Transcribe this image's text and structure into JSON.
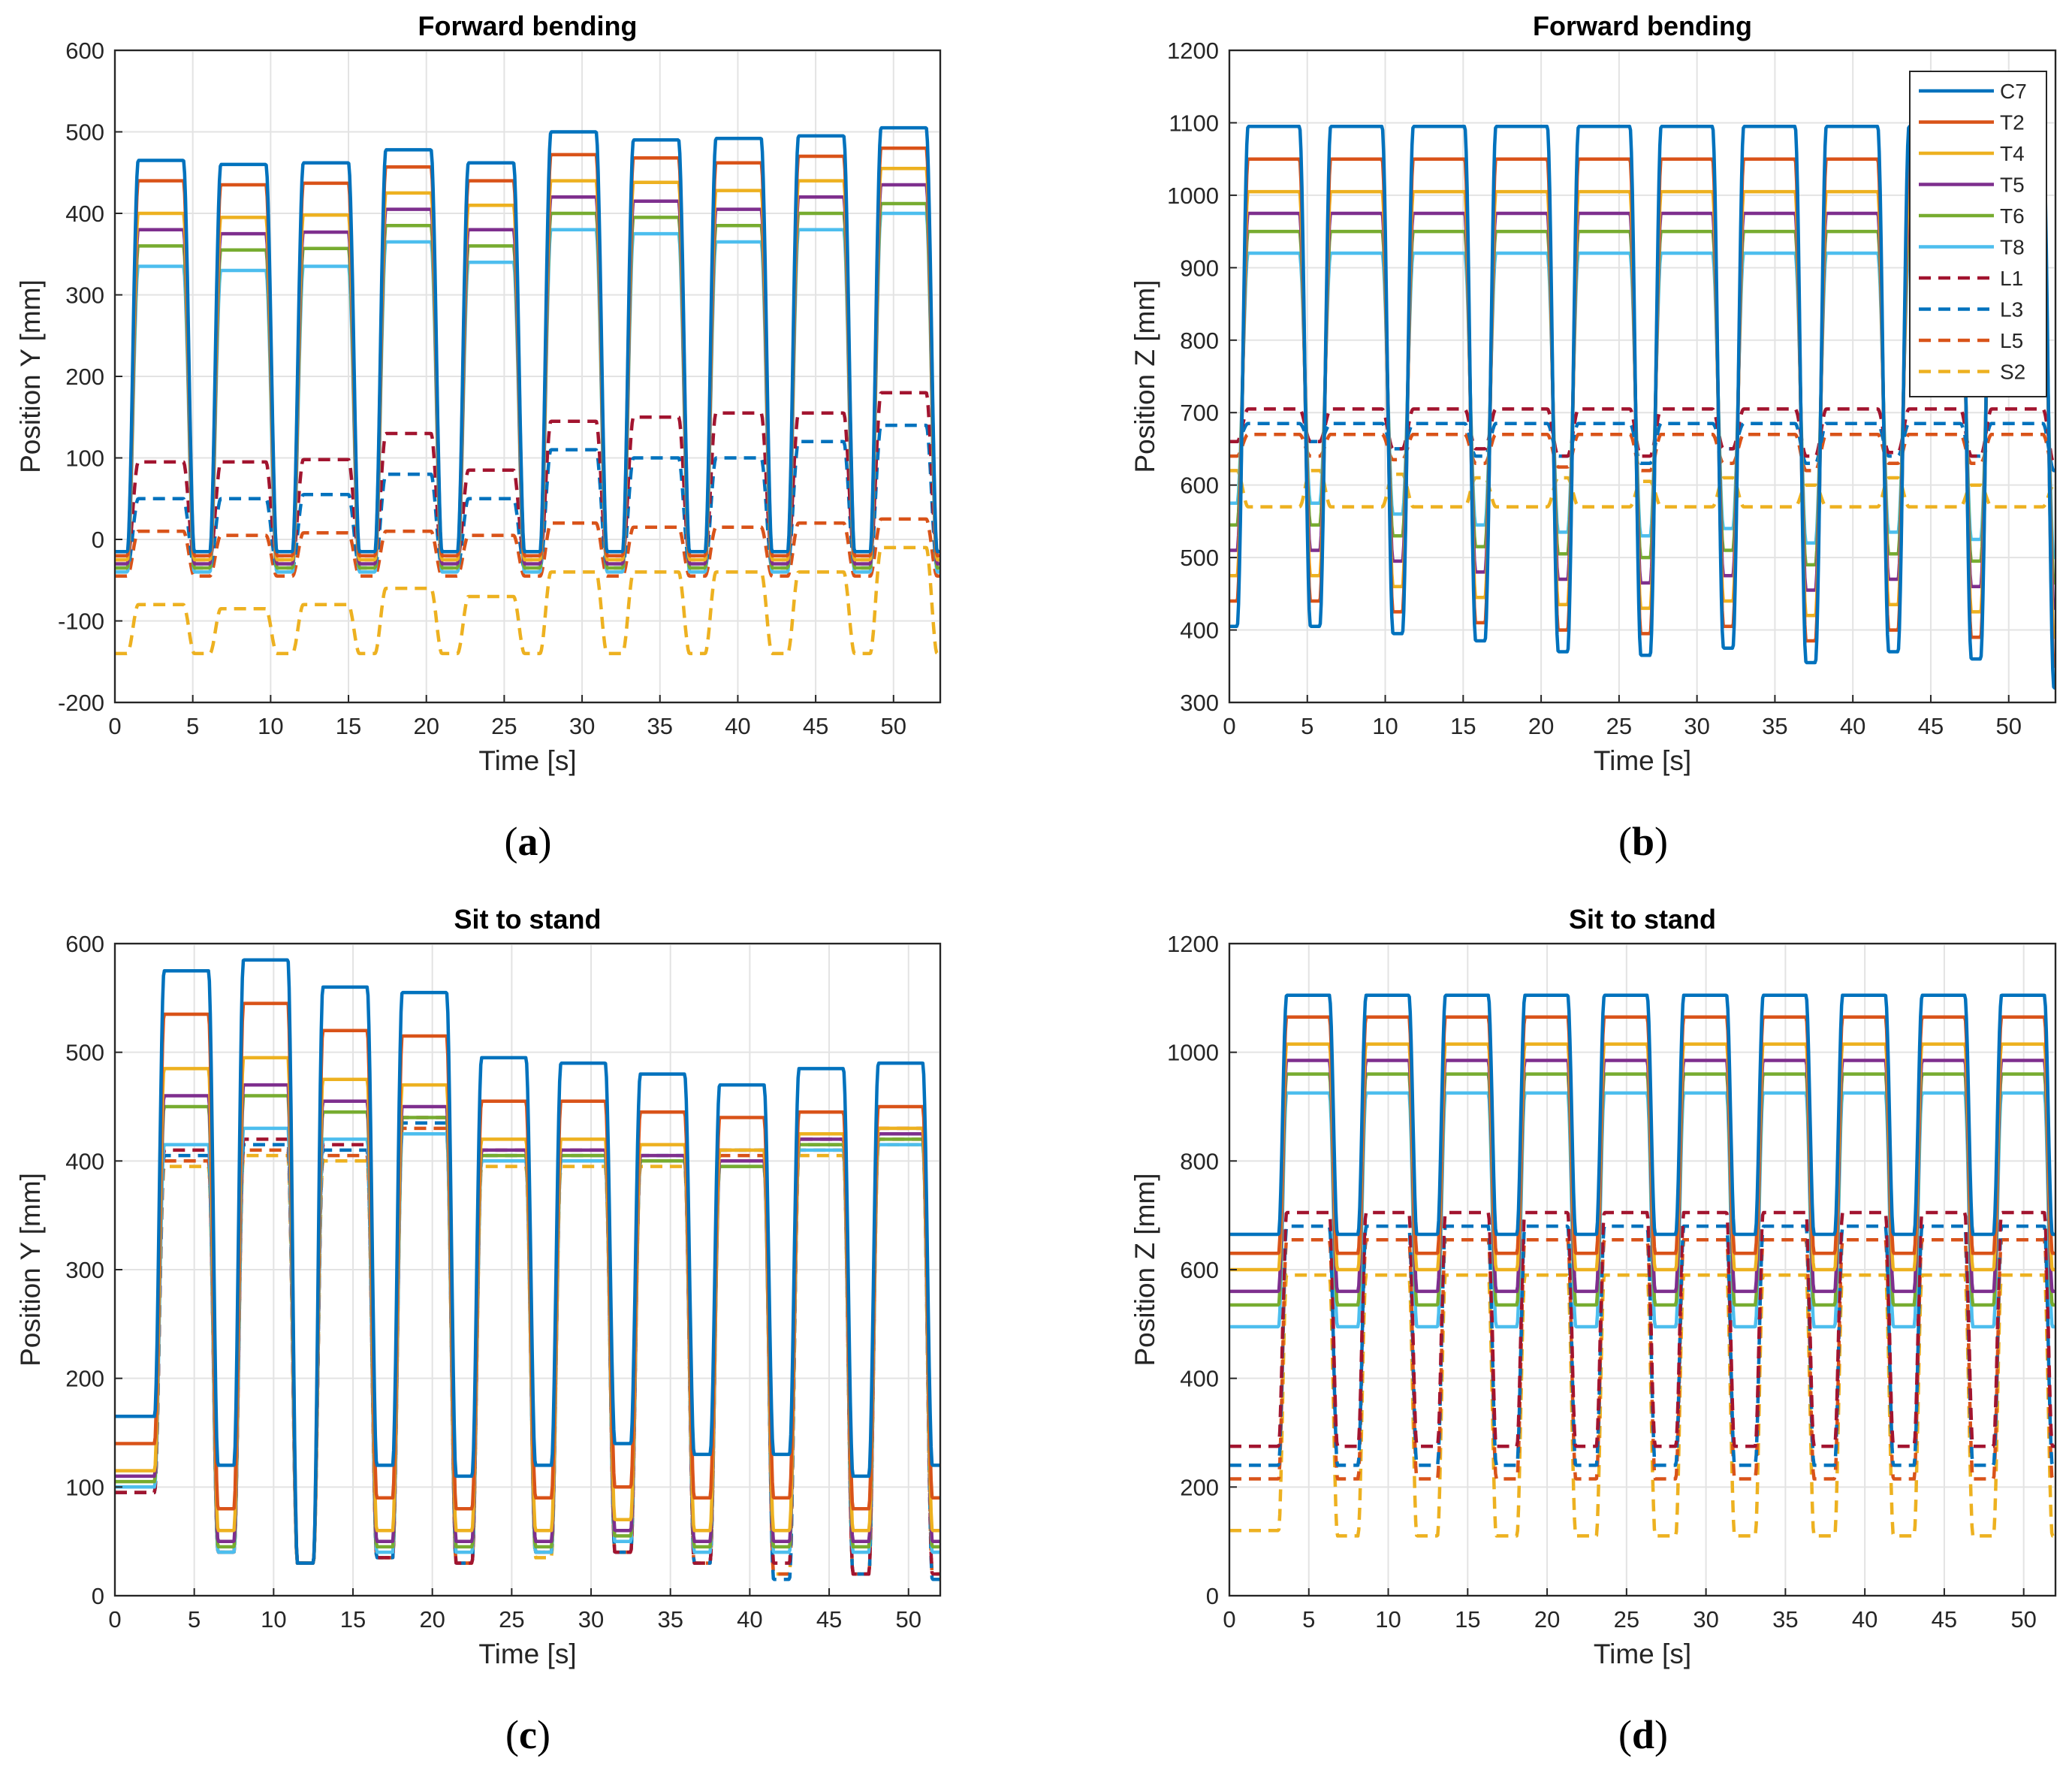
{
  "figure": {
    "captions": [
      "a",
      "b",
      "c",
      "d"
    ]
  },
  "legend": {
    "entries": [
      {
        "name": "C7",
        "color": "#0072BD",
        "style": "solid"
      },
      {
        "name": "T2",
        "color": "#D95319",
        "style": "solid"
      },
      {
        "name": "T4",
        "color": "#EDB120",
        "style": "solid"
      },
      {
        "name": "T5",
        "color": "#7E2F8E",
        "style": "solid"
      },
      {
        "name": "T6",
        "color": "#77AC30",
        "style": "solid"
      },
      {
        "name": "T8",
        "color": "#4DBEEE",
        "style": "solid"
      },
      {
        "name": "L1",
        "color": "#A2142F",
        "style": "dashed"
      },
      {
        "name": "L3",
        "color": "#0072BD",
        "style": "dashed"
      },
      {
        "name": "L5",
        "color": "#D95319",
        "style": "dashed"
      },
      {
        "name": "S2",
        "color": "#EDB120",
        "style": "dashed"
      }
    ]
  },
  "chart_data": [
    {
      "id": "a",
      "type": "line",
      "title": "Forward bending",
      "xlabel": "Time [s]",
      "ylabel": "Position Y [mm]",
      "xlim": [
        0,
        53
      ],
      "ylim": [
        -200,
        600
      ],
      "xticks": [
        0,
        5,
        10,
        15,
        20,
        25,
        30,
        35,
        40,
        45,
        50
      ],
      "yticks": [
        -200,
        -100,
        0,
        100,
        200,
        300,
        400,
        500,
        600
      ],
      "grid": true,
      "legend": "none",
      "cycles": {
        "t0": 0.8,
        "period": 5.3,
        "high_width": 2.9,
        "rise": 0.7
      },
      "series": [
        {
          "name": "C7",
          "low": -15,
          "high": [
            465,
            460,
            462,
            478,
            462,
            500,
            490,
            492,
            495,
            505
          ]
        },
        {
          "name": "T2",
          "low": -20,
          "high": [
            440,
            435,
            437,
            457,
            440,
            472,
            468,
            462,
            470,
            480
          ]
        },
        {
          "name": "T4",
          "low": -25,
          "high": [
            400,
            395,
            398,
            425,
            410,
            440,
            438,
            428,
            440,
            455
          ]
        },
        {
          "name": "T5",
          "low": -30,
          "high": [
            380,
            375,
            377,
            405,
            380,
            420,
            415,
            405,
            420,
            435
          ]
        },
        {
          "name": "T6",
          "low": -35,
          "high": [
            360,
            355,
            357,
            385,
            360,
            400,
            395,
            385,
            400,
            412
          ]
        },
        {
          "name": "T8",
          "low": -40,
          "high": [
            335,
            330,
            335,
            365,
            340,
            380,
            375,
            365,
            380,
            400
          ]
        },
        {
          "name": "L1",
          "low": -25,
          "high": [
            95,
            95,
            98,
            130,
            85,
            145,
            150,
            155,
            155,
            180
          ]
        },
        {
          "name": "L3",
          "low": -35,
          "high": [
            50,
            50,
            55,
            80,
            50,
            110,
            100,
            100,
            120,
            140
          ]
        },
        {
          "name": "L5",
          "low": -45,
          "high": [
            10,
            5,
            8,
            10,
            5,
            20,
            15,
            15,
            20,
            25
          ]
        },
        {
          "name": "S2",
          "low": -140,
          "high": [
            -80,
            -85,
            -80,
            -60,
            -70,
            -40,
            -40,
            -40,
            -40,
            -10
          ]
        }
      ]
    },
    {
      "id": "b",
      "type": "line",
      "title": "Forward bending",
      "xlabel": "Time [s]",
      "ylabel": "Position Z [mm]",
      "xlim": [
        0,
        53
      ],
      "ylim": [
        300,
        1200
      ],
      "xticks": [
        0,
        5,
        10,
        15,
        20,
        25,
        30,
        35,
        40,
        45,
        50
      ],
      "yticks": [
        300,
        400,
        500,
        600,
        700,
        800,
        900,
        1000,
        1100,
        1200
      ],
      "grid": true,
      "legend": "top-right",
      "cycles": {
        "t0": 0.5,
        "period": 5.3,
        "high_width": 3.3,
        "rise": 0.7
      },
      "series": [
        {
          "name": "C7",
          "high": 1095,
          "low": [
            405,
            395,
            385,
            370,
            365,
            375,
            355,
            370,
            360,
            320
          ]
        },
        {
          "name": "T2",
          "high": 1050,
          "low": [
            440,
            425,
            410,
            400,
            395,
            405,
            385,
            400,
            390,
            350
          ]
        },
        {
          "name": "T4",
          "high": 1005,
          "low": [
            475,
            460,
            445,
            435,
            430,
            440,
            420,
            435,
            425,
            390
          ]
        },
        {
          "name": "T5",
          "high": 975,
          "low": [
            510,
            495,
            480,
            470,
            465,
            475,
            455,
            470,
            460,
            430
          ]
        },
        {
          "name": "T6",
          "high": 950,
          "low": [
            545,
            530,
            515,
            505,
            500,
            510,
            490,
            505,
            495,
            465
          ]
        },
        {
          "name": "T8",
          "high": 920,
          "low": [
            575,
            560,
            545,
            535,
            530,
            540,
            520,
            535,
            525,
            500
          ]
        },
        {
          "name": "L1",
          "high": 705,
          "low": [
            660,
            650,
            650,
            640,
            640,
            650,
            640,
            645,
            640,
            630
          ]
        },
        {
          "name": "L3",
          "high": 685,
          "low": [
            660,
            650,
            640,
            640,
            630,
            650,
            630,
            640,
            640,
            620
          ]
        },
        {
          "name": "L5",
          "high": 670,
          "low": [
            640,
            635,
            630,
            625,
            620,
            630,
            620,
            630,
            630,
            620
          ]
        },
        {
          "name": "S2",
          "high": 570,
          "low": [
            620,
            615,
            610,
            610,
            605,
            610,
            600,
            610,
            600,
            600
          ]
        }
      ]
    },
    {
      "id": "c",
      "type": "line",
      "title": "Sit to stand",
      "xlabel": "Time [s]",
      "ylabel": "Position Y [mm]",
      "xlim": [
        0,
        52
      ],
      "ylim": [
        0,
        600
      ],
      "xticks": [
        0,
        5,
        10,
        15,
        20,
        25,
        30,
        35,
        40,
        45,
        50
      ],
      "yticks": [
        0,
        100,
        200,
        300,
        400,
        500,
        600
      ],
      "grid": true,
      "legend": "none",
      "cycles": {
        "t0": 2.5,
        "period": 5.0,
        "high_width": 2.8,
        "rise": 0.6
      },
      "series": [
        {
          "name": "C7",
          "start": 165,
          "low": [
            120,
            30,
            120,
            110,
            120,
            140,
            130,
            130,
            110,
            120
          ],
          "high": [
            575,
            585,
            560,
            555,
            495,
            490,
            480,
            470,
            485,
            490
          ]
        },
        {
          "name": "T2",
          "start": 140,
          "low": [
            80,
            30,
            90,
            80,
            90,
            100,
            90,
            90,
            80,
            90
          ],
          "high": [
            535,
            545,
            520,
            515,
            455,
            455,
            445,
            440,
            445,
            450
          ]
        },
        {
          "name": "T4",
          "start": 115,
          "low": [
            60,
            30,
            60,
            60,
            60,
            70,
            60,
            60,
            60,
            60
          ],
          "high": [
            485,
            495,
            475,
            470,
            420,
            420,
            415,
            410,
            425,
            430
          ]
        },
        {
          "name": "T5",
          "start": 110,
          "low": [
            50,
            30,
            50,
            50,
            50,
            60,
            50,
            50,
            50,
            50
          ],
          "high": [
            460,
            470,
            455,
            450,
            410,
            410,
            405,
            400,
            420,
            425
          ]
        },
        {
          "name": "T6",
          "start": 105,
          "low": [
            45,
            30,
            45,
            45,
            45,
            55,
            45,
            45,
            45,
            45
          ],
          "high": [
            450,
            460,
            445,
            440,
            405,
            405,
            400,
            395,
            415,
            420
          ]
        },
        {
          "name": "T8",
          "start": 100,
          "low": [
            40,
            30,
            40,
            40,
            40,
            50,
            40,
            40,
            40,
            40
          ],
          "high": [
            415,
            430,
            420,
            425,
            400,
            400,
            400,
            395,
            410,
            415
          ]
        },
        {
          "name": "L1",
          "start": 95,
          "low": [
            40,
            30,
            35,
            30,
            40,
            40,
            30,
            30,
            20,
            20
          ],
          "high": [
            410,
            420,
            415,
            440,
            410,
            410,
            400,
            410,
            420,
            430
          ]
        },
        {
          "name": "L3",
          "start": 95,
          "low": [
            40,
            30,
            35,
            30,
            40,
            40,
            30,
            15,
            20,
            15
          ],
          "high": [
            405,
            415,
            410,
            435,
            405,
            405,
            405,
            410,
            415,
            425
          ]
        },
        {
          "name": "L5",
          "start": 95,
          "low": [
            40,
            30,
            35,
            30,
            40,
            40,
            30,
            20,
            20,
            20
          ],
          "high": [
            400,
            410,
            405,
            430,
            400,
            400,
            400,
            405,
            410,
            420
          ]
        },
        {
          "name": "S2",
          "start": 95,
          "low": [
            40,
            30,
            35,
            30,
            35,
            40,
            30,
            20,
            20,
            20
          ],
          "high": [
            395,
            405,
            400,
            425,
            395,
            395,
            395,
            400,
            405,
            415
          ]
        }
      ]
    },
    {
      "id": "d",
      "type": "line",
      "title": "Sit to stand",
      "xlabel": "Time [s]",
      "ylabel": "Position Z [mm]",
      "xlim": [
        0,
        52
      ],
      "ylim": [
        0,
        1200
      ],
      "xticks": [
        0,
        5,
        10,
        15,
        20,
        25,
        30,
        35,
        40,
        45,
        50
      ],
      "yticks": [
        0,
        200,
        400,
        600,
        800,
        1000,
        1200
      ],
      "grid": true,
      "legend": "none",
      "cycles": {
        "t0": 3.1,
        "period": 5.0,
        "high_width": 2.7,
        "rise": 0.5
      },
      "series": [
        {
          "name": "C7",
          "start": 665,
          "low": 665,
          "high": 1105
        },
        {
          "name": "T2",
          "start": 630,
          "low": 630,
          "high": 1065
        },
        {
          "name": "T4",
          "start": 600,
          "low": 600,
          "high": 1015
        },
        {
          "name": "T5",
          "start": 560,
          "low": 560,
          "high": 985
        },
        {
          "name": "T6",
          "start": 535,
          "low": 535,
          "high": 960
        },
        {
          "name": "T8",
          "start": 495,
          "low": 495,
          "high": 925
        },
        {
          "name": "L1",
          "start": 275,
          "low": 275,
          "high": 705
        },
        {
          "name": "L3",
          "start": 240,
          "low": 240,
          "high": 680
        },
        {
          "name": "L5",
          "start": 215,
          "low": 215,
          "high": 655
        },
        {
          "name": "S2",
          "start": 120,
          "low": 110,
          "high": 590
        }
      ]
    }
  ]
}
